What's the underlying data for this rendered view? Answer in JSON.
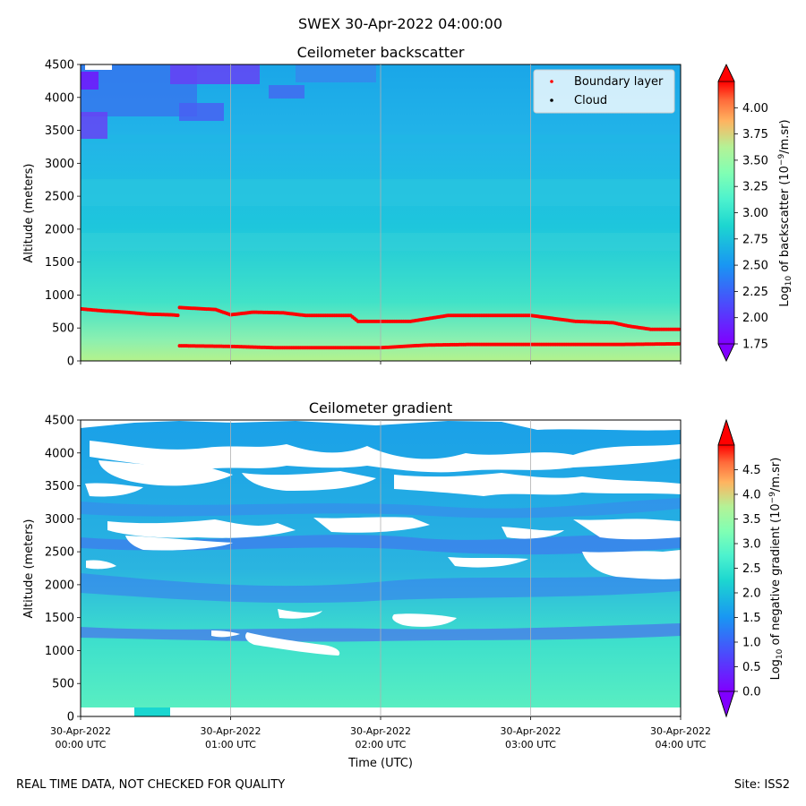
{
  "suptitle": "SWEX 30-Apr-2022 04:00:00",
  "footer_left": "REAL TIME DATA, NOT CHECKED FOR QUALITY",
  "footer_right": "Site: ISS2",
  "shared_x": {
    "label": "Time (UTC)",
    "range_hours": [
      0,
      4
    ],
    "ticks": [
      {
        "h": 0,
        "line1": "30-Apr-2022",
        "line2": "00:00 UTC"
      },
      {
        "h": 1,
        "line1": "30-Apr-2022",
        "line2": "01:00 UTC"
      },
      {
        "h": 2,
        "line1": "30-Apr-2022",
        "line2": "02:00 UTC"
      },
      {
        "h": 3,
        "line1": "30-Apr-2022",
        "line2": "03:00 UTC"
      },
      {
        "h": 4,
        "line1": "30-Apr-2022",
        "line2": "04:00 UTC"
      }
    ]
  },
  "chart_data": [
    {
      "type": "heatmap",
      "title": "Ceilometer backscatter",
      "ylabel": "Altitude (meters)",
      "ylim": [
        0,
        4500
      ],
      "yticks": [
        0,
        500,
        1000,
        1500,
        2000,
        2500,
        3000,
        3500,
        4000,
        4500
      ],
      "colorbar": {
        "label": "Log10 of backscatter (10^-9/m.sr)",
        "range": [
          1.75,
          4.25
        ],
        "ticks": [
          "1.75",
          "2.00",
          "2.25",
          "2.50",
          "2.75",
          "3.00",
          "3.25",
          "3.50",
          "3.75",
          "4.00"
        ],
        "extend": "both"
      },
      "legend": {
        "placement": "top-right",
        "entries": [
          {
            "label": "Boundary layer",
            "color": "#ff0000"
          },
          {
            "label": "Cloud",
            "color": "#000000"
          }
        ]
      },
      "series": [
        {
          "name": "Boundary layer (upper)",
          "x_hours": [
            0,
            0.15,
            0.3,
            0.45,
            0.6,
            0.66
          ],
          "y_m": [
            790,
            760,
            740,
            710,
            700,
            690
          ]
        },
        {
          "name": "Boundary layer (upper)",
          "x_hours": [
            0.66,
            0.9,
            1.0,
            1.15,
            1.35,
            1.5,
            1.8,
            1.85,
            2.2,
            2.45,
            2.6,
            3.0,
            3.3,
            3.55,
            3.65,
            3.8,
            4.0
          ],
          "y_m": [
            810,
            780,
            700,
            740,
            730,
            690,
            690,
            600,
            600,
            690,
            690,
            690,
            600,
            580,
            530,
            480,
            480
          ]
        },
        {
          "name": "Boundary layer (lower)",
          "x_hours": [
            0.66,
            1.0,
            1.3,
            1.7,
            2.0,
            2.3,
            2.6,
            3.0,
            3.3,
            3.6,
            4.0
          ],
          "y_m": [
            230,
            220,
            200,
            200,
            200,
            240,
            250,
            250,
            250,
            250,
            260
          ]
        }
      ]
    },
    {
      "type": "heatmap",
      "title": "Ceilometer gradient",
      "ylabel": "Altitude (meters)",
      "ylim": [
        0,
        4500
      ],
      "yticks": [
        0,
        500,
        1000,
        1500,
        2000,
        2500,
        3000,
        3500,
        4000,
        4500
      ],
      "colorbar": {
        "label": "Log10 of negative gradient (10^-9/m.sr)",
        "range": [
          0,
          5
        ],
        "ticks": [
          "0.0",
          "0.5",
          "1.0",
          "1.5",
          "2.0",
          "2.5",
          "3.0",
          "3.5",
          "4.0",
          "4.5"
        ],
        "extend": "both"
      }
    }
  ]
}
